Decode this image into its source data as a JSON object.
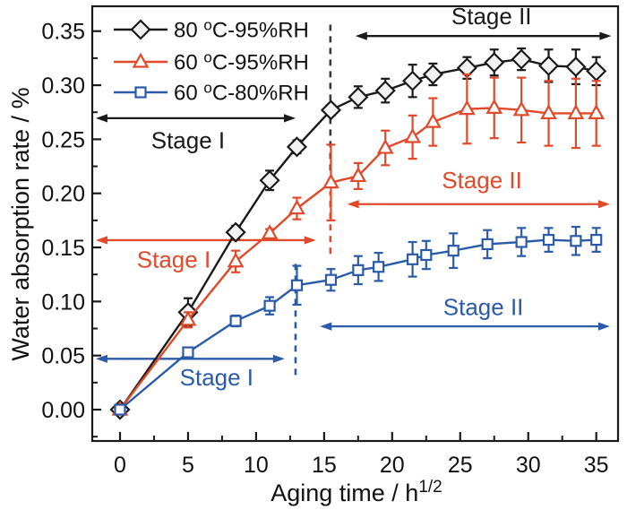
{
  "figure": {
    "background": "#ffffff",
    "text_color": "#111111",
    "axis_color": "#1a1a1a"
  },
  "chart_data": {
    "type": "line",
    "title": "",
    "xlabel": "Aging time / h^(1/2)",
    "xlabel_main": "Aging time / h",
    "xlabel_sup": "1/2",
    "ylabel": "Water absorption rate / %",
    "xlim": [
      -2.04,
      36.6
    ],
    "ylim": [
      -0.029,
      0.373
    ],
    "grid": false,
    "legend_position": "top-left-inside",
    "x_ticks": {
      "values": [
        0,
        5,
        10,
        15,
        20,
        25,
        30,
        35
      ],
      "labels": [
        "0",
        "5",
        "10",
        "15",
        "20",
        "25",
        "30",
        "35"
      ],
      "minor": [
        2.5,
        7.5,
        12.5,
        17.5,
        22.5,
        27.5,
        32.5
      ]
    },
    "y_ticks": {
      "values": [
        0.0,
        0.05,
        0.1,
        0.15,
        0.2,
        0.25,
        0.3,
        0.35
      ],
      "labels": [
        "0.00",
        "0.05",
        "0.10",
        "0.15",
        "0.20",
        "0.25",
        "0.30",
        "0.35"
      ],
      "minor": [
        -0.025,
        0.025,
        0.075,
        0.125,
        0.175,
        0.225,
        0.275,
        0.325
      ]
    },
    "series": [
      {
        "id": "80C-95RH",
        "name": "80 °C-95%RH",
        "color": "#1a1a1a",
        "marker": "diamond",
        "points": [
          [
            0,
            0.0,
            0.003
          ],
          [
            5,
            0.09,
            0.013
          ],
          [
            8.5,
            0.164,
            0.006
          ],
          [
            11,
            0.212,
            0.009
          ],
          [
            13,
            0.243,
            0.006
          ],
          [
            15.5,
            0.277,
            0.005
          ],
          [
            17.5,
            0.289,
            0.01
          ],
          [
            19.5,
            0.295,
            0.011
          ],
          [
            21.5,
            0.304,
            0.015
          ],
          [
            23,
            0.31,
            0.01
          ],
          [
            25.5,
            0.316,
            0.01
          ],
          [
            27.5,
            0.321,
            0.012
          ],
          [
            29.5,
            0.324,
            0.01
          ],
          [
            31.5,
            0.318,
            0.015
          ],
          [
            33.5,
            0.317,
            0.016
          ],
          [
            35,
            0.313,
            0.013
          ]
        ]
      },
      {
        "id": "60C-95RH",
        "name": "60 °C-95%RH",
        "color": "#e0492a",
        "marker": "triangle",
        "points": [
          [
            0,
            0.0,
            0.003
          ],
          [
            5,
            0.083,
            0.007
          ],
          [
            8.5,
            0.137,
            0.01
          ],
          [
            11,
            0.163,
            0.004
          ],
          [
            13,
            0.186,
            0.01
          ],
          [
            15.5,
            0.21,
            0.035
          ],
          [
            17.5,
            0.216,
            0.012
          ],
          [
            19.5,
            0.242,
            0.016
          ],
          [
            21.5,
            0.252,
            0.02
          ],
          [
            23,
            0.266,
            0.022
          ],
          [
            25.5,
            0.278,
            0.032
          ],
          [
            27.5,
            0.279,
            0.028
          ],
          [
            29.5,
            0.277,
            0.03
          ],
          [
            31.5,
            0.274,
            0.03
          ],
          [
            33.5,
            0.274,
            0.032
          ],
          [
            35,
            0.274,
            0.03
          ]
        ]
      },
      {
        "id": "60C-80RH",
        "name": "60 °C-80%RH",
        "color": "#2b5ba8",
        "marker": "square",
        "points": [
          [
            0,
            0.0,
            0.003
          ],
          [
            5,
            0.053,
            0.004
          ],
          [
            8.5,
            0.082,
            0.005
          ],
          [
            11,
            0.096,
            0.008
          ],
          [
            13,
            0.115,
            0.018
          ],
          [
            15.5,
            0.12,
            0.01
          ],
          [
            17.5,
            0.129,
            0.013
          ],
          [
            19,
            0.132,
            0.013
          ],
          [
            21.5,
            0.139,
            0.016
          ],
          [
            22.5,
            0.143,
            0.013
          ],
          [
            24.5,
            0.147,
            0.016
          ],
          [
            27,
            0.153,
            0.013
          ],
          [
            29.5,
            0.155,
            0.013
          ],
          [
            31.5,
            0.157,
            0.011
          ],
          [
            33.5,
            0.156,
            0.013
          ],
          [
            35,
            0.157,
            0.011
          ]
        ]
      }
    ],
    "annotations": {
      "labels": [
        {
          "text": "Stage I",
          "x": 5.0,
          "y": 0.249,
          "color": "#1a1a1a"
        },
        {
          "text": "Stage II",
          "x": 27.3,
          "y": 0.364,
          "color": "#1a1a1a"
        },
        {
          "text": "Stage I",
          "x": 3.95,
          "y": 0.139,
          "color": "#e0492a"
        },
        {
          "text": "Stage II",
          "x": 26.6,
          "y": 0.212,
          "color": "#e0492a"
        },
        {
          "text": "Stage I",
          "x": 7.1,
          "y": 0.03,
          "color": "#2b5ba8"
        },
        {
          "text": "Stage II",
          "x": 26.7,
          "y": 0.095,
          "color": "#2b5ba8"
        }
      ],
      "arrows": [
        {
          "x1": -1.78,
          "x2": 12.9,
          "y": 0.2695,
          "color": "#1a1a1a"
        },
        {
          "x1": 17.3,
          "x2": 36.1,
          "y": 0.3455,
          "color": "#1a1a1a"
        },
        {
          "x1": -1.78,
          "x2": 14.4,
          "y": 0.1567,
          "color": "#e0492a"
        },
        {
          "x1": 16.7,
          "x2": 36.0,
          "y": 0.19,
          "color": "#e0492a"
        },
        {
          "x1": -1.78,
          "x2": 12.1,
          "y": 0.047,
          "color": "#2b5ba8"
        },
        {
          "x1": 14.7,
          "x2": 36.0,
          "y": 0.077,
          "color": "#2b5ba8"
        }
      ],
      "dashed_lines": [
        {
          "x": 15.46,
          "y1": 0.221,
          "y2": 0.356,
          "color": "#3a3a3a"
        },
        {
          "x": 15.46,
          "y1": 0.144,
          "y2": 0.202,
          "color": "#e0492a"
        },
        {
          "x": 12.9,
          "y1": 0.032,
          "y2": 0.137,
          "color": "#2b5ba8"
        }
      ]
    }
  }
}
